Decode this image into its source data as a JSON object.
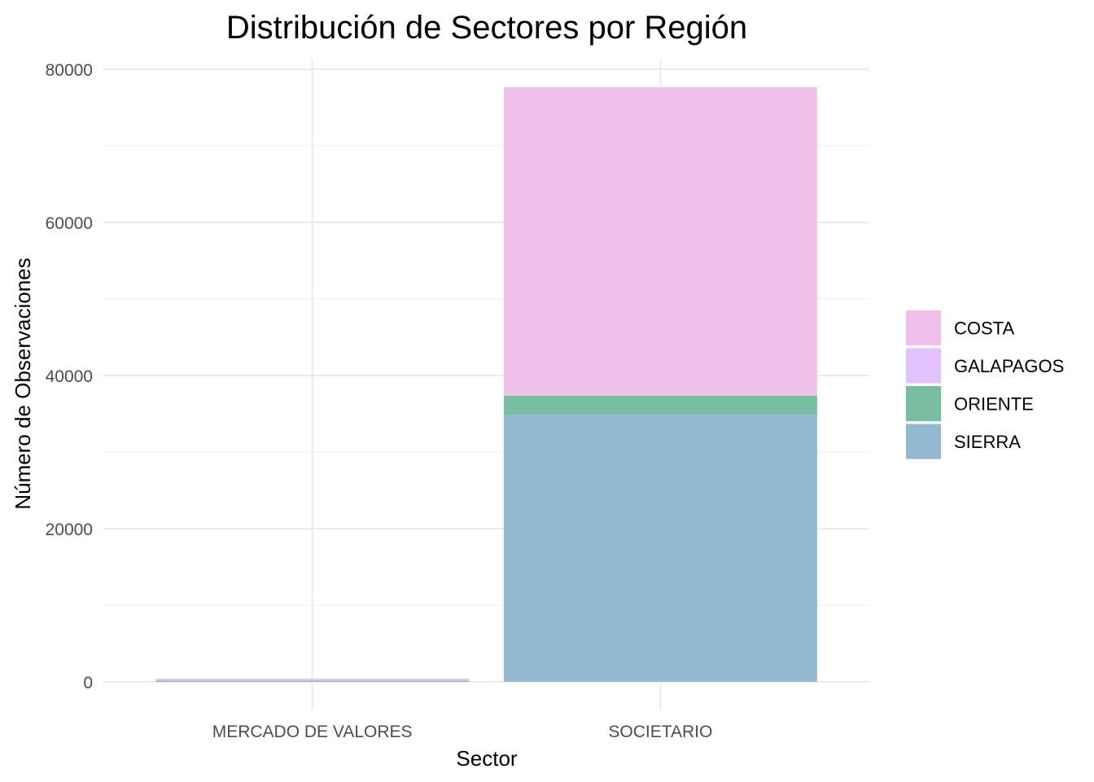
{
  "chart_data": {
    "type": "bar",
    "stacked": true,
    "title": "Distribución de Sectores por Región",
    "xlabel": "Sector",
    "ylabel": "Número de Observaciones",
    "categories": [
      "MERCADO DE VALORES",
      "SOCIETARIO"
    ],
    "series": [
      {
        "name": "SIERRA",
        "color": "#95b8d1",
        "values": [
          130,
          34900
        ]
      },
      {
        "name": "ORIENTE",
        "color": "#76be9f",
        "values": [
          10,
          2500
        ]
      },
      {
        "name": "GALAPAGOS",
        "color": "#e2c3ff",
        "values": [
          0,
          50
        ]
      },
      {
        "name": "COSTA",
        "color": "#f0c0e8",
        "values": [
          270,
          40200
        ]
      }
    ],
    "legend_order": [
      "COSTA",
      "GALAPAGOS",
      "ORIENTE",
      "SIERRA"
    ],
    "ylim": [
      0,
      80000
    ],
    "yticks": [
      0,
      20000,
      40000,
      60000,
      80000
    ],
    "ytick_labels": [
      "0",
      "20000",
      "40000",
      "60000",
      "80000"
    ],
    "grid": true,
    "legend_position": "right"
  }
}
